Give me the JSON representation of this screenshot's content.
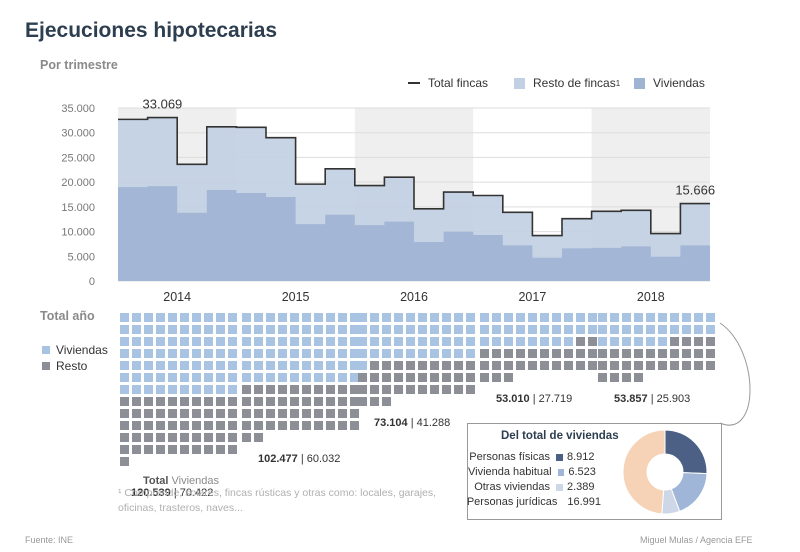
{
  "title": "Ejecuciones hipotecarias",
  "subtitle": "Por trimestre",
  "legend": {
    "total": "Total fincas",
    "resto": "Resto de fincas",
    "resto_sup": "1",
    "viviendas": "Viviendas"
  },
  "colors": {
    "total_line": "#333333",
    "resto": "#c2d0e3",
    "viviendas": "#9fb3d3",
    "waffle_viv": "#a9c4e2",
    "waffle_resto": "#8c8f96",
    "grid": "#dddddd",
    "year_band": "#efefef",
    "pie_fisicas": "#4b6084",
    "pie_habitual": "#9fb6d9",
    "pie_otras": "#cdd7e8",
    "pie_juridicas": "#f6d3b6"
  },
  "chart_data": [
    {
      "type": "area",
      "title": "Por trimestre",
      "years": [
        "2014",
        "2015",
        "2016",
        "2017",
        "2018"
      ],
      "quarters_per_year": 4,
      "ylim": [
        0,
        35000
      ],
      "yticks": [
        0,
        5000,
        10000,
        15000,
        20000,
        25000,
        30000,
        35000
      ],
      "ytick_labels": [
        "0",
        "5.000",
        "10.000",
        "15.000",
        "20.000",
        "25.000",
        "30.000",
        "35.000"
      ],
      "series": [
        {
          "name": "Total fincas",
          "values": [
            32700,
            33069,
            23600,
            31200,
            31100,
            29000,
            19600,
            22700,
            19300,
            21000,
            14600,
            18000,
            17300,
            13900,
            9200,
            12600,
            14100,
            14300,
            9600,
            15666
          ]
        },
        {
          "name": "Viviendas",
          "values": [
            19000,
            19200,
            13800,
            18400,
            17800,
            17000,
            11500,
            13400,
            11300,
            12000,
            7900,
            10000,
            9300,
            7200,
            4700,
            6600,
            6700,
            7000,
            4900,
            7200
          ]
        }
      ],
      "annotations": [
        {
          "index": 1,
          "text": "33.069"
        },
        {
          "index": 19,
          "text": "15.666"
        }
      ]
    },
    {
      "type": "waffle",
      "title": "Total año",
      "unit_per_square": 1000,
      "legend": [
        "Viviendas",
        "Resto"
      ],
      "header_total": "Total",
      "header_viviendas": "Viviendas",
      "years": [
        {
          "year": "2014",
          "total": 120539,
          "viviendas": 70422,
          "total_label": "120.539",
          "viv_label": "70.422"
        },
        {
          "year": "2015",
          "total": 102477,
          "viviendas": 60032,
          "total_label": "102.477",
          "viv_label": "60.032"
        },
        {
          "year": "2016",
          "total": 73104,
          "viviendas": 41288,
          "total_label": "73.104",
          "viv_label": "41.288"
        },
        {
          "year": "2017",
          "total": 53010,
          "viviendas": 27719,
          "total_label": "53.010",
          "viv_label": "27.719"
        },
        {
          "year": "2018",
          "total": 53857,
          "viviendas": 25903,
          "total_label": "53.857",
          "viv_label": "25.903"
        }
      ]
    },
    {
      "type": "pie",
      "title": "Del total de viviendas",
      "donut": true,
      "slices": [
        {
          "label": "Personas físicas",
          "value": 8912,
          "value_label": "8.912"
        },
        {
          "label": "Vivienda habitual",
          "value": 6523,
          "value_label": "6.523"
        },
        {
          "label": "Otras viviendas",
          "value": 2389,
          "value_label": "2.389"
        },
        {
          "label": "Personas jurídicas",
          "value": 16991,
          "value_label": "16.991"
        }
      ]
    }
  ],
  "footnote": "¹ Comprende, solares, fincas rústicas y otras como: locales, garajes, oficinas, trasteros, naves...",
  "source": "Fuente: INE",
  "credit": "Miguel Mulas / Agencia EFE"
}
